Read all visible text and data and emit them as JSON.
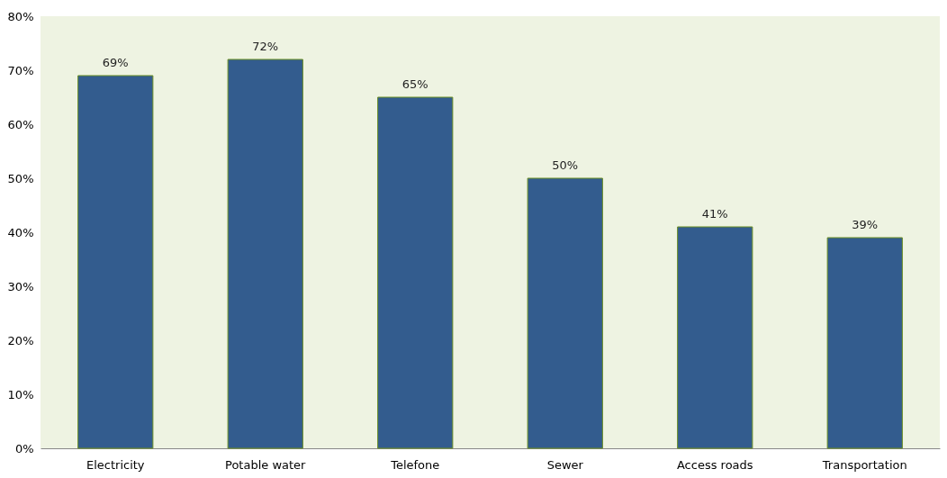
{
  "chart_data": {
    "type": "bar",
    "categories": [
      "Electricity",
      "Potable water",
      "Telefone",
      "Sewer",
      "Access roads",
      "Transportation"
    ],
    "values": [
      69,
      72,
      65,
      50,
      41,
      39
    ],
    "value_labels": [
      "69%",
      "72%",
      "65%",
      "50%",
      "41%",
      "39%"
    ],
    "color": "#335c8e",
    "ylim": [
      0,
      80
    ],
    "yticks": [
      {
        "value": 0,
        "label": "0%"
      },
      {
        "value": 10,
        "label": "10%"
      },
      {
        "value": 20,
        "label": "20%"
      },
      {
        "value": 30,
        "label": "30%"
      },
      {
        "value": 40,
        "label": "40%"
      },
      {
        "value": 50,
        "label": "50%"
      },
      {
        "value": 60,
        "label": "60%"
      },
      {
        "value": 70,
        "label": "70%"
      },
      {
        "value": 80,
        "label": "80%"
      }
    ],
    "grid": false
  }
}
